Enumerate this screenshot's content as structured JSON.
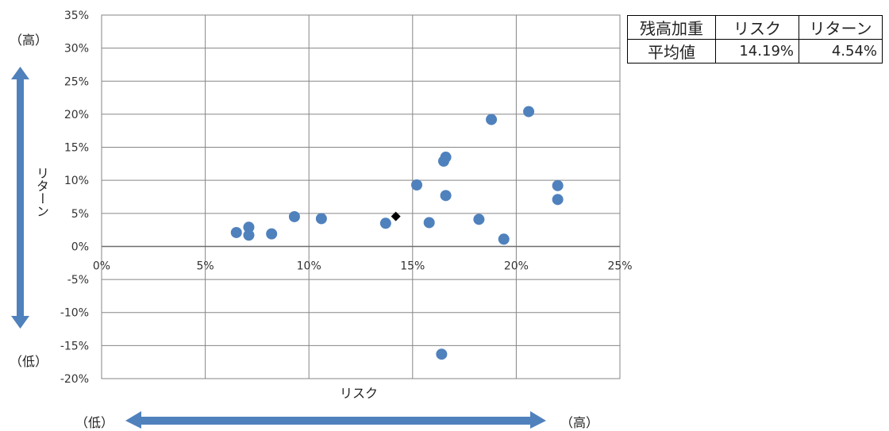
{
  "chart_data": {
    "type": "scatter",
    "xlabel": "リスク",
    "ylabel": "リターン",
    "xlim": [
      0,
      25
    ],
    "ylim": [
      -20,
      35
    ],
    "x_ticks": [
      "0%",
      "5%",
      "10%",
      "15%",
      "20%",
      "25%"
    ],
    "y_ticks": [
      "35%",
      "30%",
      "25%",
      "20%",
      "15%",
      "10%",
      "5%",
      "0%",
      "-5%",
      "-10%",
      "-15%",
      "-20%"
    ],
    "grid": true,
    "series": [
      {
        "marker": "circle",
        "color": "#4f81bd",
        "points": [
          {
            "x": 6.5,
            "y": 2.1
          },
          {
            "x": 7.1,
            "y": 2.9
          },
          {
            "x": 7.1,
            "y": 1.7
          },
          {
            "x": 8.2,
            "y": 1.9
          },
          {
            "x": 9.3,
            "y": 4.5
          },
          {
            "x": 10.6,
            "y": 4.2
          },
          {
            "x": 13.7,
            "y": 3.5
          },
          {
            "x": 15.2,
            "y": 9.3
          },
          {
            "x": 15.8,
            "y": 3.6
          },
          {
            "x": 16.5,
            "y": 12.9
          },
          {
            "x": 16.6,
            "y": 13.5
          },
          {
            "x": 16.6,
            "y": 7.7
          },
          {
            "x": 16.4,
            "y": -16.3
          },
          {
            "x": 18.2,
            "y": 4.1
          },
          {
            "x": 18.8,
            "y": 19.2
          },
          {
            "x": 19.4,
            "y": 1.1
          },
          {
            "x": 20.6,
            "y": 20.4
          },
          {
            "x": 22.0,
            "y": 9.2
          },
          {
            "x": 22.0,
            "y": 7.1
          }
        ]
      },
      {
        "marker": "diamond",
        "color": "#000000",
        "points": [
          {
            "x": 14.19,
            "y": 4.54
          }
        ]
      }
    ]
  },
  "axis_labels": {
    "y_high": "（高）",
    "y_low": "（低）",
    "x_low": "（低）",
    "x_high": "（高）"
  },
  "summary": {
    "row1": "残高加重",
    "row2": "平均値",
    "risk_header": "リスク",
    "return_header": "リターン",
    "risk_value": "14.19%",
    "return_value": "4.54%"
  },
  "colors": {
    "arrow": "#4f81bd",
    "grid": "#868686"
  }
}
